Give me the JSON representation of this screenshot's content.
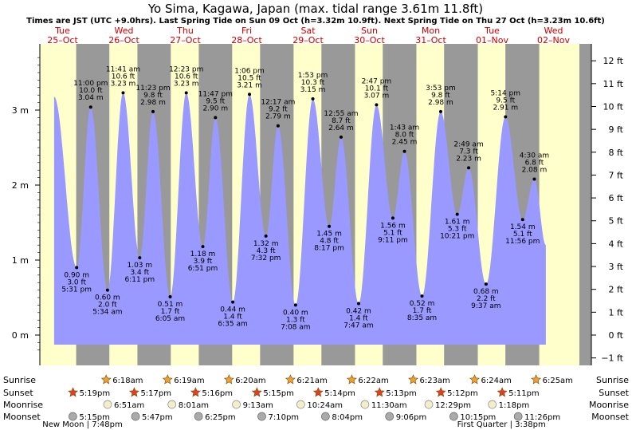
{
  "title": "Yo Sima, Kagawa, Japan (max. tidal range 3.61m 11.8ft)",
  "subtitle": "Times are JST (UTC +9.0hrs). Last Spring Tide on Sun 09 Oct (h=3.32m 10.9ft). Next Spring Tide on Thu 27 Oct (h=3.23m 10.6ft)",
  "colors": {
    "day_background": "#ffffcc",
    "night_background": "#999999",
    "tide_fill": "#9999ff",
    "day_label": "#cc0000",
    "axis_text": "#000000"
  },
  "chart_data": {
    "type": "area",
    "title": "Yo Sima, Kagawa, Japan (max. tidal range 3.61m 11.8ft)",
    "ylabel_left": "m",
    "ylabel_right": "ft",
    "ylim_m": [
      -0.3,
      3.85
    ],
    "y_ticks_m": [
      0,
      1,
      2,
      3
    ],
    "y_tick_labels_m": [
      "0 m",
      "1 m",
      "2 m",
      "3 m"
    ],
    "y_ticks_ft": [
      -1,
      0,
      1,
      2,
      3,
      4,
      5,
      6,
      7,
      8,
      9,
      10,
      11,
      12
    ],
    "y_tick_labels_ft": [
      "−1 ft",
      "0 ft",
      "1 ft",
      "2 ft",
      "3 ft",
      "4 ft",
      "5 ft",
      "6 ft",
      "7 ft",
      "8 ft",
      "9 ft",
      "10 ft",
      "11 ft",
      "12 ft"
    ],
    "days": [
      {
        "dow": "Tue",
        "date": "25–Oct"
      },
      {
        "dow": "Wed",
        "date": "26–Oct"
      },
      {
        "dow": "Thu",
        "date": "27–Oct"
      },
      {
        "dow": "Fri",
        "date": "28–Oct"
      },
      {
        "dow": "Sat",
        "date": "29–Oct"
      },
      {
        "dow": "Sun",
        "date": "30–Oct"
      },
      {
        "dow": "Mon",
        "date": "31–Oct"
      },
      {
        "dow": "Tue",
        "date": "01–Nov"
      },
      {
        "dow": "Wed",
        "date": "02–Nov"
      }
    ],
    "tides": [
      {
        "day": 0,
        "time": "",
        "hours": 8.7,
        "m": 3.18,
        "ft": "",
        "label": false,
        "type": "high"
      },
      {
        "day": 0,
        "time": "5:31 pm",
        "hours": 17.52,
        "m": 0.9,
        "ft": "3.0 ft",
        "m_label": "0.90 m",
        "label": true,
        "type": "low"
      },
      {
        "day": 0,
        "time": "11:00 pm",
        "hours": 23.0,
        "m": 3.04,
        "ft": "10.0 ft",
        "m_label": "3.04 m",
        "label": true,
        "type": "high"
      },
      {
        "day": 1,
        "time": "5:34 am",
        "hours": 29.57,
        "m": 0.6,
        "ft": "2.0 ft",
        "m_label": "0.60 m",
        "label": true,
        "type": "low"
      },
      {
        "day": 1,
        "time": "11:41 am",
        "hours": 35.68,
        "m": 3.23,
        "ft": "10.6 ft",
        "m_label": "3.23 m",
        "label": true,
        "type": "high"
      },
      {
        "day": 1,
        "time": "6:11 pm",
        "hours": 42.18,
        "m": 1.03,
        "ft": "3.4 ft",
        "m_label": "1.03 m",
        "label": true,
        "type": "low"
      },
      {
        "day": 1,
        "time": "11:23 pm",
        "hours": 47.38,
        "m": 2.98,
        "ft": "9.8 ft",
        "m_label": "2.98 m",
        "label": true,
        "type": "high"
      },
      {
        "day": 2,
        "time": "6:05 am",
        "hours": 54.08,
        "m": 0.51,
        "ft": "1.7 ft",
        "m_label": "0.51 m",
        "label": true,
        "type": "low"
      },
      {
        "day": 2,
        "time": "12:23 pm",
        "hours": 60.38,
        "m": 3.23,
        "ft": "10.6 ft",
        "m_label": "3.23 m",
        "label": true,
        "type": "high"
      },
      {
        "day": 2,
        "time": "6:51 pm",
        "hours": 66.85,
        "m": 1.18,
        "ft": "3.9 ft",
        "m_label": "1.18 m",
        "label": true,
        "type": "low"
      },
      {
        "day": 2,
        "time": "11:47 pm",
        "hours": 71.78,
        "m": 2.9,
        "ft": "9.5 ft",
        "m_label": "2.90 m",
        "label": true,
        "type": "high"
      },
      {
        "day": 3,
        "time": "6:35 am",
        "hours": 78.58,
        "m": 0.44,
        "ft": "1.4 ft",
        "m_label": "0.44 m",
        "label": true,
        "type": "low"
      },
      {
        "day": 3,
        "time": "1:06 pm",
        "hours": 85.1,
        "m": 3.21,
        "ft": "10.5 ft",
        "m_label": "3.21 m",
        "label": true,
        "type": "high"
      },
      {
        "day": 3,
        "time": "7:32 pm",
        "hours": 91.53,
        "m": 1.32,
        "ft": "4.3 ft",
        "m_label": "1.32 m",
        "label": true,
        "type": "low"
      },
      {
        "day": 4,
        "time": "12:17 am",
        "hours": 96.28,
        "m": 2.79,
        "ft": "9.2 ft",
        "m_label": "2.79 m",
        "label": true,
        "type": "high"
      },
      {
        "day": 4,
        "time": "7:08 am",
        "hours": 103.13,
        "m": 0.4,
        "ft": "1.3 ft",
        "m_label": "0.40 m",
        "label": true,
        "type": "low"
      },
      {
        "day": 4,
        "time": "1:53 pm",
        "hours": 109.88,
        "m": 3.15,
        "ft": "10.3 ft",
        "m_label": "3.15 m",
        "label": true,
        "type": "high"
      },
      {
        "day": 4,
        "time": "8:17 pm",
        "hours": 116.28,
        "m": 1.45,
        "ft": "4.8 ft",
        "m_label": "1.45 m",
        "label": true,
        "type": "low"
      },
      {
        "day": 5,
        "time": "12:55 am",
        "hours": 120.92,
        "m": 2.64,
        "ft": "8.7 ft",
        "m_label": "2.64 m",
        "label": true,
        "type": "high"
      },
      {
        "day": 5,
        "time": "7:47 am",
        "hours": 127.78,
        "m": 0.42,
        "ft": "1.4 ft",
        "m_label": "0.42 m",
        "label": true,
        "type": "low"
      },
      {
        "day": 5,
        "time": "2:47 pm",
        "hours": 134.78,
        "m": 3.07,
        "ft": "10.1 ft",
        "m_label": "3.07 m",
        "label": true,
        "type": "high"
      },
      {
        "day": 5,
        "time": "9:11 pm",
        "hours": 141.18,
        "m": 1.56,
        "ft": "5.1 ft",
        "m_label": "1.56 m",
        "label": true,
        "type": "low"
      },
      {
        "day": 6,
        "time": "1:43 am",
        "hours": 145.72,
        "m": 2.45,
        "ft": "8.0 ft",
        "m_label": "2.45 m",
        "label": true,
        "type": "high"
      },
      {
        "day": 6,
        "time": "8:35 am",
        "hours": 152.58,
        "m": 0.52,
        "ft": "1.7 ft",
        "m_label": "0.52 m",
        "label": true,
        "type": "low"
      },
      {
        "day": 6,
        "time": "3:53 pm",
        "hours": 159.88,
        "m": 2.98,
        "ft": "9.8 ft",
        "m_label": "2.98 m",
        "label": true,
        "type": "high"
      },
      {
        "day": 6,
        "time": "10:21 pm",
        "hours": 166.35,
        "m": 1.61,
        "ft": "5.3 ft",
        "m_label": "1.61 m",
        "label": true,
        "type": "low"
      },
      {
        "day": 7,
        "time": "2:49 am",
        "hours": 170.82,
        "m": 2.23,
        "ft": "7.3 ft",
        "m_label": "2.23 m",
        "label": true,
        "type": "high"
      },
      {
        "day": 7,
        "time": "9:37 am",
        "hours": 177.62,
        "m": 0.68,
        "ft": "2.2 ft",
        "m_label": "0.68 m",
        "label": true,
        "type": "low"
      },
      {
        "day": 7,
        "time": "5:14 pm",
        "hours": 185.23,
        "m": 2.91,
        "ft": "9.5 ft",
        "m_label": "2.91 m",
        "label": true,
        "type": "high"
      },
      {
        "day": 7,
        "time": "11:56 pm",
        "hours": 191.93,
        "m": 1.54,
        "ft": "5.1 ft",
        "m_label": "1.54 m",
        "label": true,
        "type": "low"
      },
      {
        "day": 8,
        "time": "4:30 am",
        "hours": 196.5,
        "m": 2.08,
        "ft": "6.8 ft",
        "m_label": "2.08 m",
        "label": true,
        "type": "high"
      },
      {
        "day": 8,
        "time": "",
        "hours": 201.0,
        "m": 1.2,
        "ft": "",
        "label": false,
        "type": "low"
      }
    ],
    "sunrise": [
      {
        "day": 1,
        "time": "6:18am",
        "hours": 30.3
      },
      {
        "day": 2,
        "time": "6:19am",
        "hours": 54.32
      },
      {
        "day": 3,
        "time": "6:20am",
        "hours": 78.33
      },
      {
        "day": 4,
        "time": "6:21am",
        "hours": 102.35
      },
      {
        "day": 5,
        "time": "6:22am",
        "hours": 126.37
      },
      {
        "day": 6,
        "time": "6:23am",
        "hours": 150.38
      },
      {
        "day": 7,
        "time": "6:24am",
        "hours": 174.4
      },
      {
        "day": 8,
        "time": "6:25am",
        "hours": 198.42
      }
    ],
    "sunset": [
      {
        "day": 0,
        "time": "5:19pm",
        "hours": 17.32
      },
      {
        "day": 1,
        "time": "5:17pm",
        "hours": 41.28
      },
      {
        "day": 2,
        "time": "5:16pm",
        "hours": 65.27
      },
      {
        "day": 3,
        "time": "5:15pm",
        "hours": 89.25
      },
      {
        "day": 4,
        "time": "5:14pm",
        "hours": 113.23
      },
      {
        "day": 5,
        "time": "5:13pm",
        "hours": 137.22
      },
      {
        "day": 6,
        "time": "5:12pm",
        "hours": 161.2
      },
      {
        "day": 7,
        "time": "5:11pm",
        "hours": 185.18
      }
    ],
    "moonrise": [
      {
        "time": "6:51am",
        "hours": 30.85
      },
      {
        "time": "8:01am",
        "hours": 56.02
      },
      {
        "time": "9:13am",
        "hours": 81.22
      },
      {
        "time": "10:24am",
        "hours": 106.4
      },
      {
        "time": "11:30am",
        "hours": 131.5
      },
      {
        "time": "12:29pm",
        "hours": 156.48
      },
      {
        "time": "1:18pm",
        "hours": 181.3
      }
    ],
    "moonset": [
      {
        "time": "5:15pm",
        "hours": 17.25
      },
      {
        "time": "5:47pm",
        "hours": 41.78
      },
      {
        "time": "6:25pm",
        "hours": 66.42
      },
      {
        "time": "7:10pm",
        "hours": 91.17
      },
      {
        "time": "8:04pm",
        "hours": 116.07
      },
      {
        "time": "9:06pm",
        "hours": 141.1
      },
      {
        "time": "10:15pm",
        "hours": 166.25
      },
      {
        "time": "11:26pm",
        "hours": 191.43
      }
    ],
    "moon_phases": [
      {
        "label": "New Moon | 7:48pm",
        "hours": 19.8
      },
      {
        "label": "First Quarter | 3:38pm",
        "hours": 183.63
      }
    ],
    "row_labels": {
      "sunrise": "Sunrise",
      "sunset": "Sunset",
      "moonrise": "Moonrise",
      "moonset": "Moonset"
    }
  }
}
